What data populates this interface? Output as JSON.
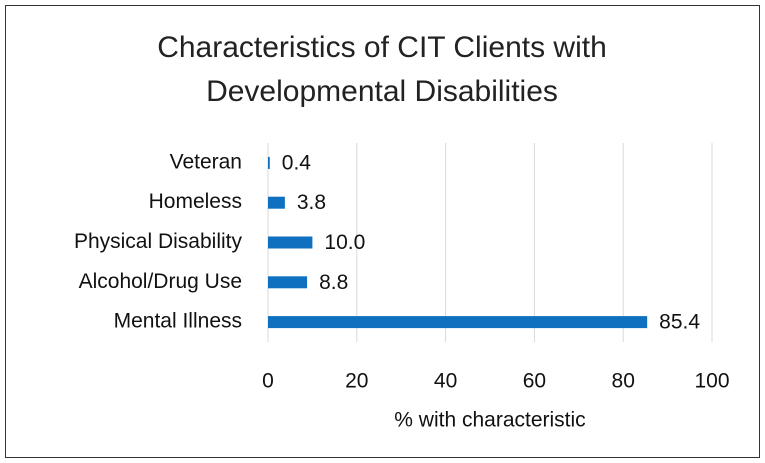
{
  "chart_data": {
    "type": "bar",
    "orientation": "horizontal",
    "title": "Characteristics of CIT Clients with Developmental Disabilities",
    "categories": [
      "Veteran",
      "Homeless",
      "Physical Disability",
      "Alcohol/Drug Use",
      "Mental Illness"
    ],
    "values": [
      0.4,
      3.8,
      10.0,
      8.8,
      85.4
    ],
    "value_labels": [
      "0.4",
      "3.8",
      "10.0",
      "8.8",
      "85.4"
    ],
    "color": "#0f70c0",
    "xlim": [
      0,
      100
    ],
    "xticks": [
      0,
      20,
      40,
      60,
      80,
      100
    ],
    "x_label": "% with characteristic",
    "grid": true
  }
}
